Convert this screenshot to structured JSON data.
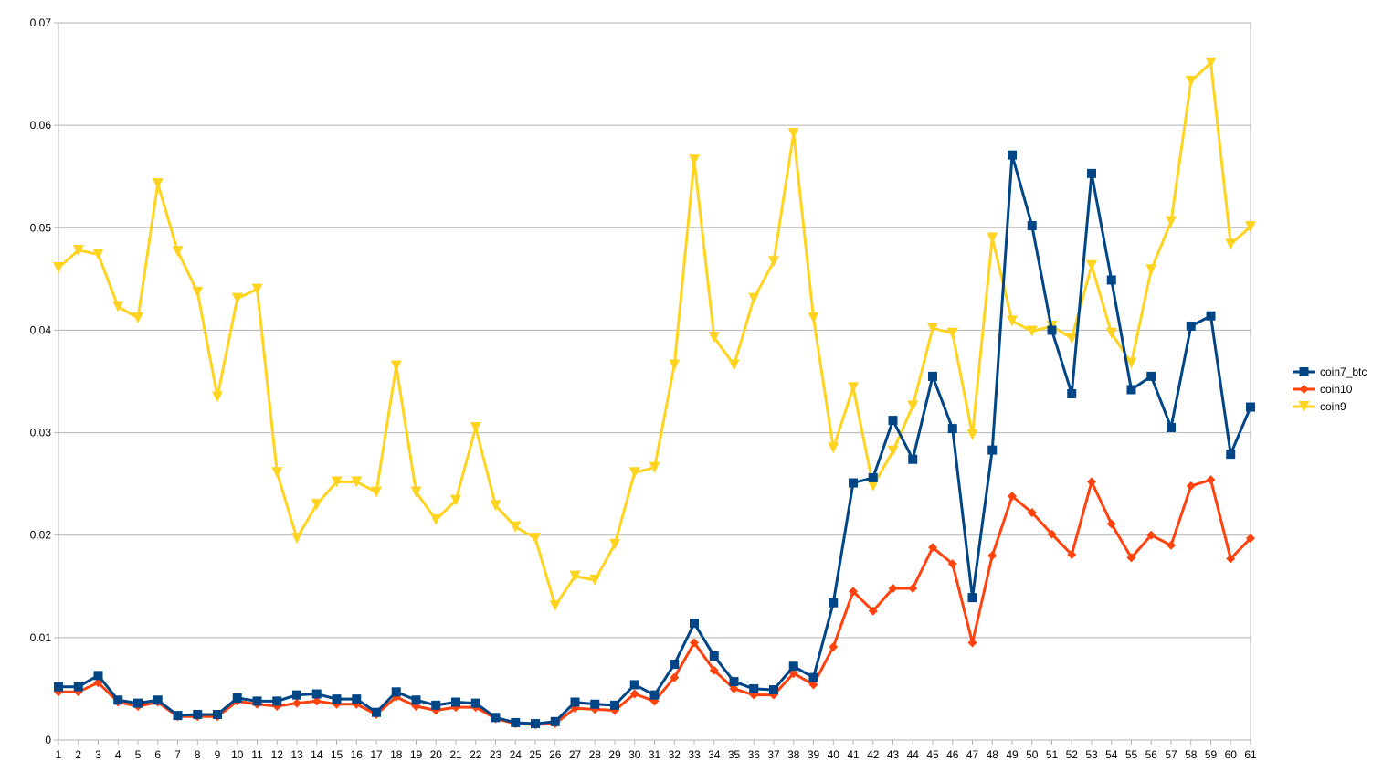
{
  "chart_data": {
    "type": "line",
    "title": "",
    "xlabel": "",
    "ylabel": "",
    "ylim": [
      0,
      0.07
    ],
    "y_ticks": [
      "0",
      "0.01",
      "0.02",
      "0.03",
      "0.04",
      "0.05",
      "0.06",
      "0.07"
    ],
    "y_tick_values": [
      0,
      0.01,
      0.02,
      0.03,
      0.04,
      0.05,
      0.06,
      0.07
    ],
    "categories": [
      "1",
      "2",
      "3",
      "4",
      "5",
      "6",
      "7",
      "8",
      "9",
      "10",
      "11",
      "12",
      "13",
      "14",
      "15",
      "16",
      "17",
      "18",
      "19",
      "20",
      "21",
      "22",
      "23",
      "24",
      "25",
      "26",
      "27",
      "28",
      "29",
      "30",
      "31",
      "32",
      "33",
      "34",
      "35",
      "36",
      "37",
      "38",
      "39",
      "40",
      "41",
      "42",
      "43",
      "44",
      "45",
      "46",
      "47",
      "48",
      "49",
      "50",
      "51",
      "52",
      "53",
      "54",
      "55",
      "56",
      "57",
      "58",
      "59",
      "60",
      "61"
    ],
    "grid": true,
    "legend_position": "right",
    "series": [
      {
        "name": "coin7_btc",
        "color": "#004586",
        "marker": "square",
        "values": [
          0.0052,
          0.0052,
          0.0063,
          0.0039,
          0.0036,
          0.0039,
          0.0024,
          0.0025,
          0.0025,
          0.0041,
          0.0038,
          0.0038,
          0.0044,
          0.0045,
          0.004,
          0.004,
          0.0027,
          0.0047,
          0.0039,
          0.0034,
          0.0037,
          0.0036,
          0.0022,
          0.0017,
          0.0016,
          0.0018,
          0.0037,
          0.0035,
          0.0034,
          0.0054,
          0.0044,
          0.0074,
          0.0114,
          0.0082,
          0.0057,
          0.005,
          0.0049,
          0.0072,
          0.0061,
          0.0134,
          0.0251,
          0.0256,
          0.0312,
          0.0274,
          0.0355,
          0.0304,
          0.0139,
          0.0283,
          0.0571,
          0.0502,
          0.04,
          0.0338,
          0.0553,
          0.0449,
          0.0342,
          0.0355,
          0.0305,
          0.0404,
          0.0414,
          0.0279,
          0.0325
        ]
      },
      {
        "name": "coin10",
        "color": "#ff420e",
        "marker": "diamond",
        "values": [
          0.0047,
          0.0047,
          0.0056,
          0.0037,
          0.0033,
          0.0037,
          0.0023,
          0.0023,
          0.0023,
          0.0038,
          0.0035,
          0.0033,
          0.0036,
          0.0038,
          0.0035,
          0.0035,
          0.0025,
          0.0042,
          0.0033,
          0.0029,
          0.0032,
          0.0032,
          0.0021,
          0.0016,
          0.0015,
          0.0016,
          0.0031,
          0.003,
          0.0029,
          0.0045,
          0.0038,
          0.0061,
          0.0095,
          0.0068,
          0.005,
          0.0044,
          0.0044,
          0.0065,
          0.0054,
          0.0091,
          0.0145,
          0.0126,
          0.0148,
          0.0148,
          0.0188,
          0.0172,
          0.0095,
          0.018,
          0.0238,
          0.0222,
          0.0201,
          0.0181,
          0.0252,
          0.0211,
          0.0178,
          0.02,
          0.019,
          0.0248,
          0.0254,
          0.0177,
          0.0197
        ]
      },
      {
        "name": "coin9",
        "color": "#ffd320",
        "marker": "triangle-down",
        "values": [
          0.0461,
          0.0478,
          0.0474,
          0.0423,
          0.0412,
          0.0543,
          0.0477,
          0.0437,
          0.0335,
          0.0431,
          0.044,
          0.0261,
          0.0197,
          0.023,
          0.0252,
          0.0252,
          0.0242,
          0.0365,
          0.0242,
          0.0215,
          0.0234,
          0.0305,
          0.0229,
          0.0208,
          0.0197,
          0.0131,
          0.016,
          0.0156,
          0.0191,
          0.0261,
          0.0266,
          0.0366,
          0.0566,
          0.0393,
          0.0366,
          0.0431,
          0.0467,
          0.0592,
          0.0412,
          0.0285,
          0.0344,
          0.0248,
          0.0282,
          0.0326,
          0.0402,
          0.0397,
          0.0298,
          0.049,
          0.0409,
          0.0399,
          0.0404,
          0.0392,
          0.0463,
          0.0397,
          0.0368,
          0.0459,
          0.0506,
          0.0643,
          0.0661,
          0.0484,
          0.0501
        ]
      }
    ]
  }
}
